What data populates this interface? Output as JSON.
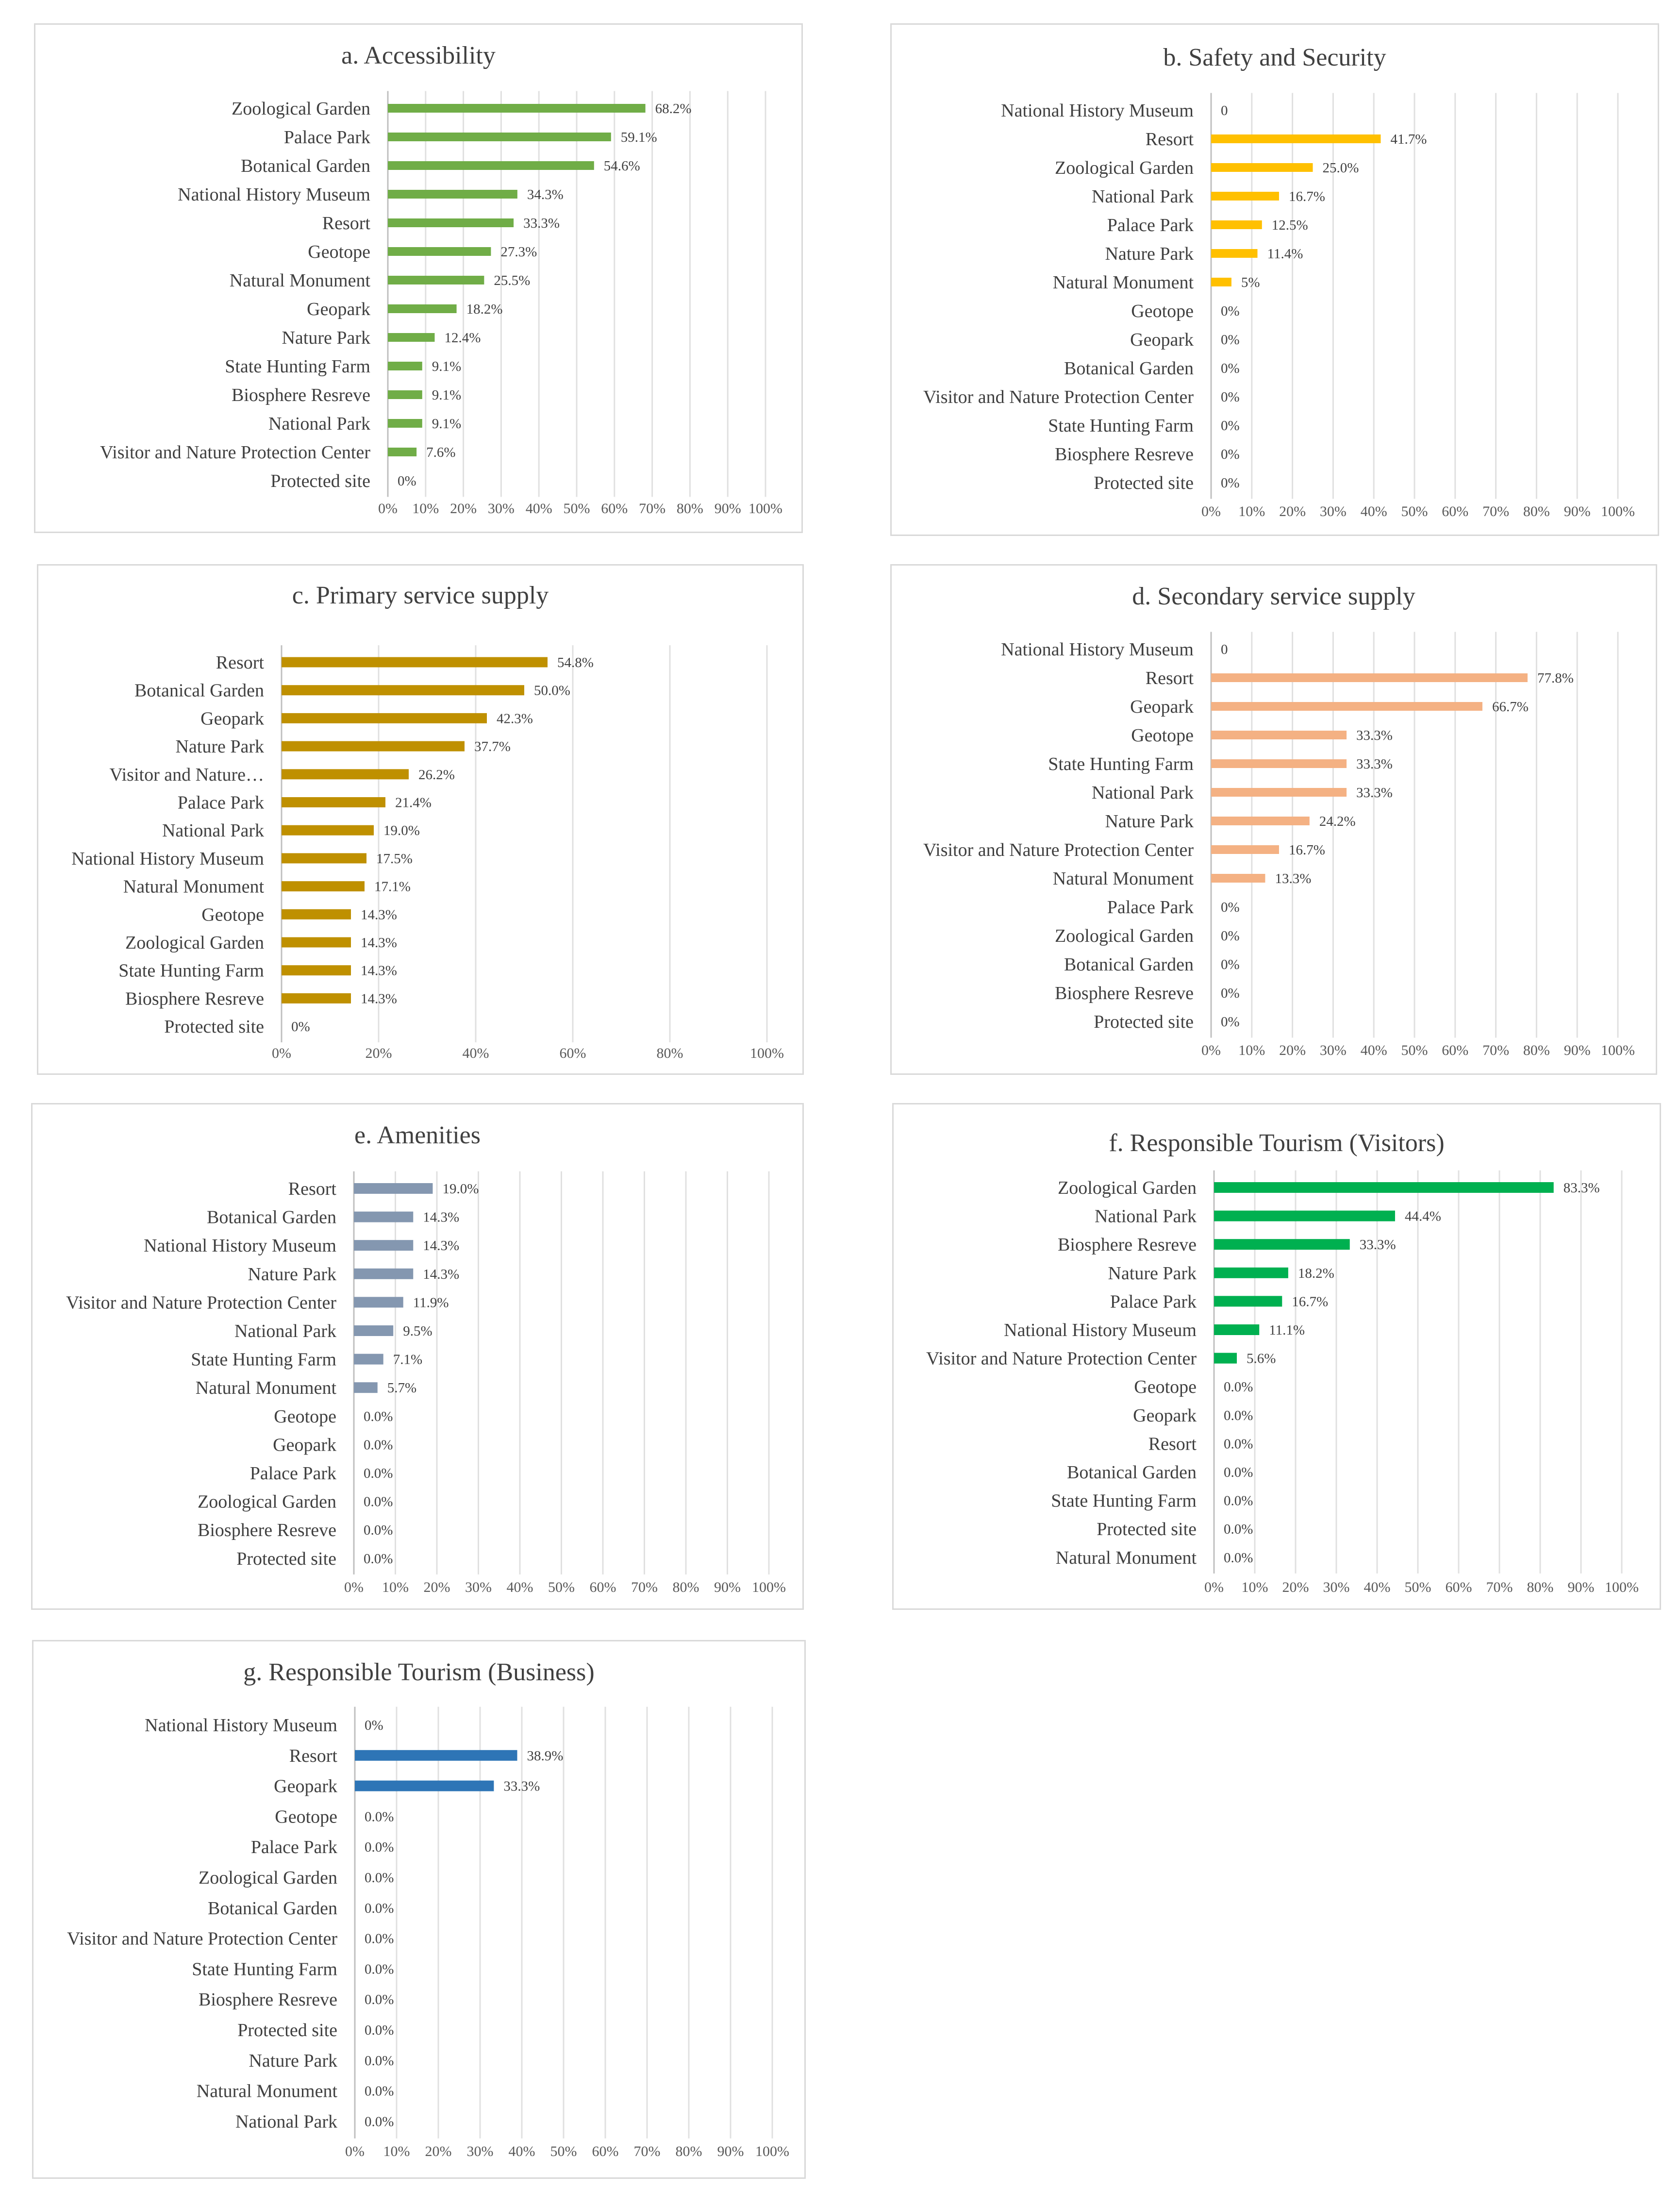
{
  "chart_data": [
    {
      "id": "a",
      "type": "bar",
      "orientation": "horizontal",
      "title": "a. Accessibility",
      "color": "#70ad47",
      "categories": [
        "Zoological Garden",
        "Palace Park",
        "Botanical Garden",
        "National History Museum",
        "Resort",
        "Geotope",
        "Natural Monument",
        "Geopark",
        "Nature Park",
        "State Hunting Farm",
        "Biosphere Resreve",
        "National Park",
        "Visitor and Nature Protection Center",
        "Protected site"
      ],
      "values": [
        68.2,
        59.1,
        54.6,
        34.3,
        33.3,
        27.3,
        25.5,
        18.2,
        12.4,
        9.1,
        9.1,
        9.1,
        7.6,
        0
      ],
      "value_labels": [
        "68.2%",
        "59.1%",
        "54.6%",
        "34.3%",
        "33.3%",
        "27.3%",
        "25.5%",
        "18.2%",
        "12.4%",
        "9.1%",
        "9.1%",
        "9.1%",
        "7.6%",
        "0%"
      ],
      "xlim": [
        0,
        100
      ],
      "xticks": [
        "0%",
        "10%",
        "20%",
        "30%",
        "40%",
        "50%",
        "60%",
        "70%",
        "80%",
        "90%",
        "100%"
      ]
    },
    {
      "id": "b",
      "type": "bar",
      "orientation": "horizontal",
      "title": "b. Safety and Security",
      "color": "#ffc000",
      "categories": [
        "National History Museum",
        "Resort",
        "Zoological Garden",
        "National Park",
        "Palace Park",
        "Nature Park",
        "Natural Monument",
        "Geotope",
        "Geopark",
        "Botanical Garden",
        "Visitor and Nature Protection Center",
        "State Hunting Farm",
        "Biosphere Resreve",
        "Protected site"
      ],
      "values": [
        0,
        41.7,
        25.0,
        16.7,
        12.5,
        11.4,
        5,
        0,
        0,
        0,
        0,
        0,
        0,
        0
      ],
      "value_labels": [
        "0",
        "41.7%",
        "25.0%",
        "16.7%",
        "12.5%",
        "11.4%",
        "5%",
        "0%",
        "0%",
        "0%",
        "0%",
        "0%",
        "0%",
        "0%"
      ],
      "xlim": [
        0,
        100
      ],
      "xticks": [
        "0%",
        "10%",
        "20%",
        "30%",
        "40%",
        "50%",
        "60%",
        "70%",
        "80%",
        "90%",
        "100%"
      ]
    },
    {
      "id": "c",
      "type": "bar",
      "orientation": "horizontal",
      "title": "c. Primary service supply",
      "color": "#bf9000",
      "categories": [
        "Resort",
        "Botanical Garden",
        "Geopark",
        "Nature Park",
        "Visitor and Nature…",
        "Palace Park",
        "National Park",
        "National History Museum",
        "Natural Monument",
        "Geotope",
        "Zoological Garden",
        "State Hunting Farm",
        "Biosphere Resreve",
        "Protected site"
      ],
      "values": [
        54.8,
        50.0,
        42.3,
        37.7,
        26.2,
        21.4,
        19.0,
        17.5,
        17.1,
        14.3,
        14.3,
        14.3,
        14.3,
        0
      ],
      "value_labels": [
        "54.8%",
        "50.0%",
        "42.3%",
        "37.7%",
        "26.2%",
        "21.4%",
        "19.0%",
        "17.5%",
        "17.1%",
        "14.3%",
        "14.3%",
        "14.3%",
        "14.3%",
        "0%"
      ],
      "xlim": [
        0,
        100
      ],
      "xticks": [
        "0%",
        "20%",
        "40%",
        "60%",
        "80%",
        "100%"
      ]
    },
    {
      "id": "d",
      "type": "bar",
      "orientation": "horizontal",
      "title": "d. Secondary service supply",
      "color": "#f4b183",
      "categories": [
        "National History Museum",
        "Resort",
        "Geopark",
        "Geotope",
        "State Hunting Farm",
        "National Park",
        "Nature Park",
        "Visitor and Nature Protection Center",
        "Natural Monument",
        "Palace Park",
        "Zoological Garden",
        "Botanical Garden",
        "Biosphere Resreve",
        "Protected site"
      ],
      "values": [
        0,
        77.8,
        66.7,
        33.3,
        33.3,
        33.3,
        24.2,
        16.7,
        13.3,
        0,
        0,
        0,
        0,
        0
      ],
      "value_labels": [
        "0",
        "77.8%",
        "66.7%",
        "33.3%",
        "33.3%",
        "33.3%",
        "24.2%",
        "16.7%",
        "13.3%",
        "0%",
        "0%",
        "0%",
        "0%",
        "0%"
      ],
      "xlim": [
        0,
        100
      ],
      "xticks": [
        "0%",
        "10%",
        "20%",
        "30%",
        "40%",
        "50%",
        "60%",
        "70%",
        "80%",
        "90%",
        "100%"
      ]
    },
    {
      "id": "e",
      "type": "bar",
      "orientation": "horizontal",
      "title": "e. Amenities",
      "color": "#8497b0",
      "categories": [
        "Resort",
        "Botanical Garden",
        "National History Museum",
        "Nature Park",
        "Visitor and Nature Protection Center",
        "National Park",
        "State Hunting Farm",
        "Natural Monument",
        "Geotope",
        "Geopark",
        "Palace Park",
        "Zoological Garden",
        "Biosphere Resreve",
        "Protected site"
      ],
      "values": [
        19.0,
        14.3,
        14.3,
        14.3,
        11.9,
        9.5,
        7.1,
        5.7,
        0,
        0,
        0,
        0,
        0,
        0
      ],
      "value_labels": [
        "19.0%",
        "14.3%",
        "14.3%",
        "14.3%",
        "11.9%",
        "9.5%",
        "7.1%",
        "5.7%",
        "0.0%",
        "0.0%",
        "0.0%",
        "0.0%",
        "0.0%",
        "0.0%"
      ],
      "xlim": [
        0,
        100
      ],
      "xticks": [
        "0%",
        "10%",
        "20%",
        "30%",
        "40%",
        "50%",
        "60%",
        "70%",
        "80%",
        "90%",
        "100%"
      ]
    },
    {
      "id": "f",
      "type": "bar",
      "orientation": "horizontal",
      "title": "f. Responsible Tourism (Visitors)",
      "color": "#00b050",
      "categories": [
        "Zoological Garden",
        "National Park",
        "Biosphere Resreve",
        "Nature Park",
        "Palace Park",
        "National History Museum",
        "Visitor and Nature Protection Center",
        "Geotope",
        "Geopark",
        "Resort",
        "Botanical Garden",
        "State Hunting Farm",
        "Protected site",
        "Natural Monument"
      ],
      "values": [
        83.3,
        44.4,
        33.3,
        18.2,
        16.7,
        11.1,
        5.6,
        0,
        0,
        0,
        0,
        0,
        0,
        0
      ],
      "value_labels": [
        "83.3%",
        "44.4%",
        "33.3%",
        "18.2%",
        "16.7%",
        "11.1%",
        "5.6%",
        "0.0%",
        "0.0%",
        "0.0%",
        "0.0%",
        "0.0%",
        "0.0%",
        "0.0%"
      ],
      "xlim": [
        0,
        100
      ],
      "xticks": [
        "0%",
        "10%",
        "20%",
        "30%",
        "40%",
        "50%",
        "60%",
        "70%",
        "80%",
        "90%",
        "100%"
      ]
    },
    {
      "id": "g",
      "type": "bar",
      "orientation": "horizontal",
      "title": "g. Responsible Tourism (Business)",
      "color": "#2e75b6",
      "categories": [
        "National History Museum",
        "Resort",
        "Geopark",
        "Geotope",
        "Palace Park",
        "Zoological Garden",
        "Botanical Garden",
        "Visitor and Nature Protection Center",
        "State Hunting Farm",
        "Biosphere Resreve",
        "Protected site",
        "Nature Park",
        "Natural Monument",
        "National Park"
      ],
      "values": [
        0,
        38.9,
        33.3,
        0,
        0,
        0,
        0,
        0,
        0,
        0,
        0,
        0,
        0,
        0
      ],
      "value_labels": [
        "0%",
        "38.9%",
        "33.3%",
        "0.0%",
        "0.0%",
        "0.0%",
        "0.0%",
        "0.0%",
        "0.0%",
        "0.0%",
        "0.0%",
        "0.0%",
        "0.0%",
        "0.0%"
      ],
      "xlim": [
        0,
        100
      ],
      "xticks": [
        "0%",
        "10%",
        "20%",
        "30%",
        "40%",
        "50%",
        "60%",
        "70%",
        "80%",
        "90%",
        "100%"
      ]
    }
  ]
}
